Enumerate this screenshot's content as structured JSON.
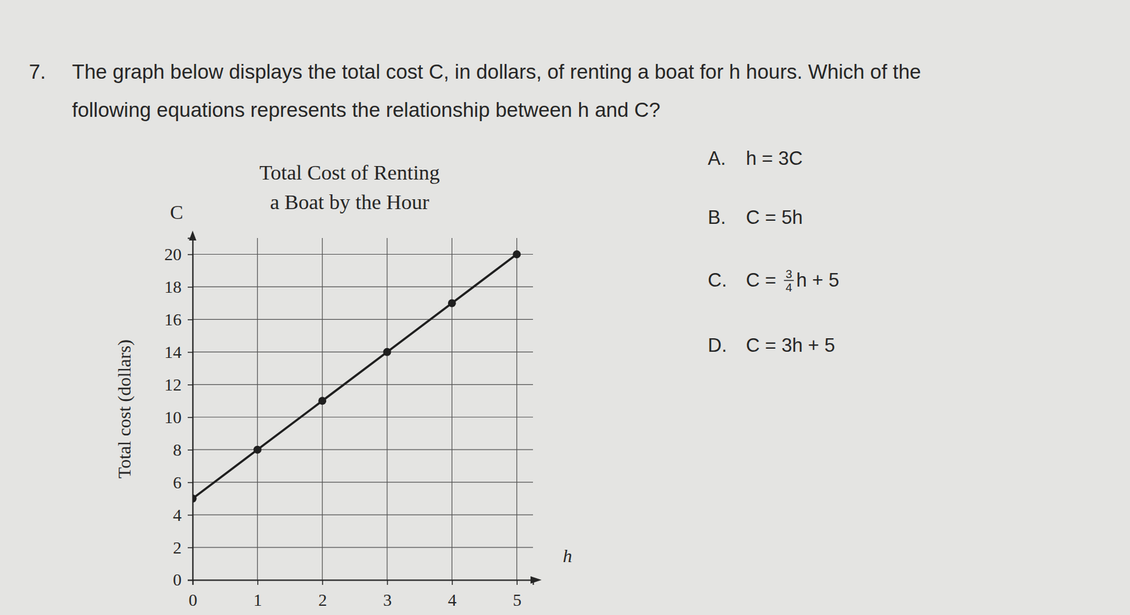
{
  "question": {
    "number": "7.",
    "lines": [
      "The graph below displays the total cost C, in dollars, of renting a boat for h hours. Which of the",
      "following equations represents the relationship between h and C?"
    ]
  },
  "choices": [
    {
      "letter": "A.",
      "equation": "h = 3C"
    },
    {
      "letter": "B.",
      "equation": "C = 5h"
    },
    {
      "letter": "C.",
      "before": "C = ",
      "numerator": "3",
      "denominator": "4",
      "after": "h + 5"
    },
    {
      "letter": "D.",
      "equation": "C = 3h + 5"
    }
  ],
  "chart_data": {
    "type": "line",
    "title": [
      "Total Cost of Renting",
      "a Boat by the Hour"
    ],
    "ylabel": "Total cost (dollars)",
    "y_symbol": "C",
    "x_symbol": "h",
    "x": [
      0,
      1,
      2,
      3,
      4,
      5
    ],
    "values": [
      5,
      8,
      11,
      14,
      17,
      20
    ],
    "color": "#1f1f1f",
    "marker": "circle",
    "xlim": [
      0,
      5.25
    ],
    "ylim": [
      0,
      21
    ],
    "xticks": [
      0,
      1,
      2,
      3,
      4,
      5
    ],
    "yticks": [
      0,
      2,
      4,
      6,
      8,
      10,
      12,
      14,
      16,
      18,
      20
    ],
    "grid": true
  }
}
